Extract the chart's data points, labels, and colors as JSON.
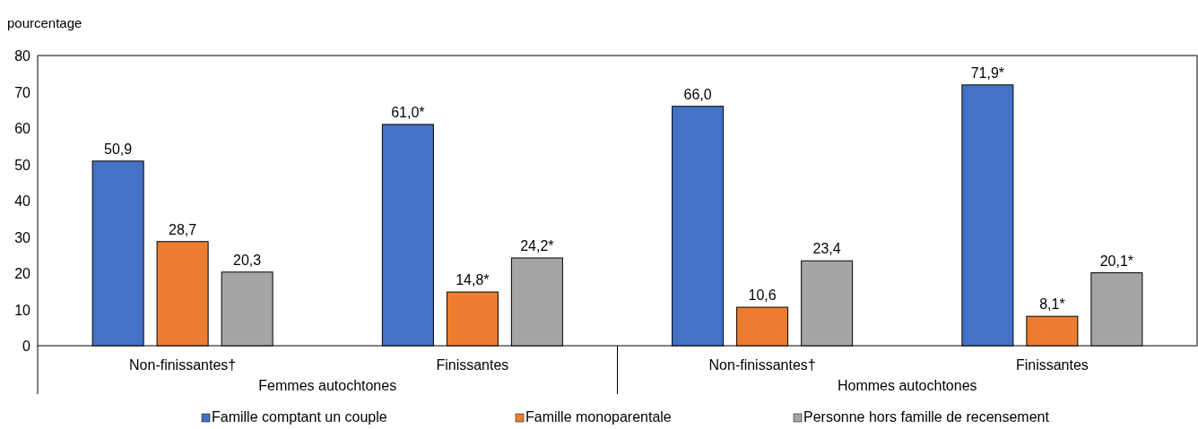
{
  "chart_data": {
    "type": "bar",
    "ylabel": "pourcentage",
    "categories": [
      "Non-finissantes†",
      "Finissantes",
      "Non-finissantes†",
      "Finissantes"
    ],
    "series": [
      {
        "name": "Famille comptant un couple",
        "color": "#4472c4",
        "values": [
          50.9,
          61.0,
          66.0,
          71.9
        ],
        "value_labels": [
          "50,9",
          "61,0*",
          "66,0",
          "71,9*"
        ]
      },
      {
        "name": "Famille monoparentale",
        "color": "#ed7d31",
        "values": [
          28.7,
          14.8,
          10.6,
          8.1
        ],
        "value_labels": [
          "28,7",
          "14,8*",
          "10,6",
          "8,1*"
        ]
      },
      {
        "name": "Personne hors famille de recensement",
        "color": "#a5a5a5",
        "values": [
          20.3,
          24.2,
          23.4,
          20.1
        ],
        "value_labels": [
          "20,3",
          "24,2*",
          "23,4",
          "20,1*"
        ]
      }
    ],
    "annotations": [
      "Femmes autochtones",
      "Hommes autochtones"
    ],
    "ylim": [
      0,
      80
    ],
    "yticks": [
      0,
      10,
      20,
      30,
      40,
      50,
      60,
      70,
      80
    ],
    "grid": false,
    "legend": "bottom"
  }
}
